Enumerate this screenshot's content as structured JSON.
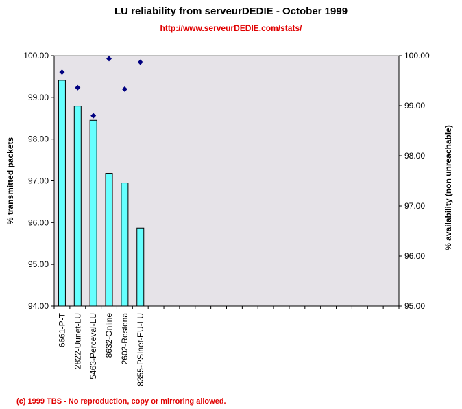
{
  "chart_data": {
    "type": "bar",
    "title": "LU reliability from serveurDEDIE - October 1999",
    "subtitle": "http://www.serveurDEDIE.com/stats/",
    "footer": "(c) 1999 TBS - No reproduction, copy or mirroring allowed.",
    "categories": [
      "6661-P-T",
      "2822-Uunet-LU",
      "5463-Perceval-LU",
      "8632-Online",
      "2602-Restena",
      "8355-PSInet-EU-LU"
    ],
    "category_slots": 22,
    "ylabel": "% transmitted packets",
    "y2label": "% availability (non unreachable)",
    "ylim": [
      94,
      100
    ],
    "y2lim": [
      95,
      100
    ],
    "yticks": [
      "94.00",
      "95.00",
      "96.00",
      "97.00",
      "98.00",
      "99.00",
      "100.00"
    ],
    "y2ticks": [
      "95.00",
      "96.00",
      "97.00",
      "98.00",
      "99.00",
      "100.00"
    ],
    "grid": false,
    "plot_background": "#e6e3e8",
    "series": [
      {
        "type": "bar",
        "axis": "left",
        "color": "#66ffff",
        "values": [
          99.41,
          98.79,
          98.45,
          97.18,
          96.95,
          95.87
        ]
      },
      {
        "type": "scatter",
        "marker": "diamond",
        "axis": "right",
        "color": "#000080",
        "values": [
          99.67,
          99.36,
          98.8,
          99.94,
          99.33,
          99.87
        ]
      }
    ]
  }
}
